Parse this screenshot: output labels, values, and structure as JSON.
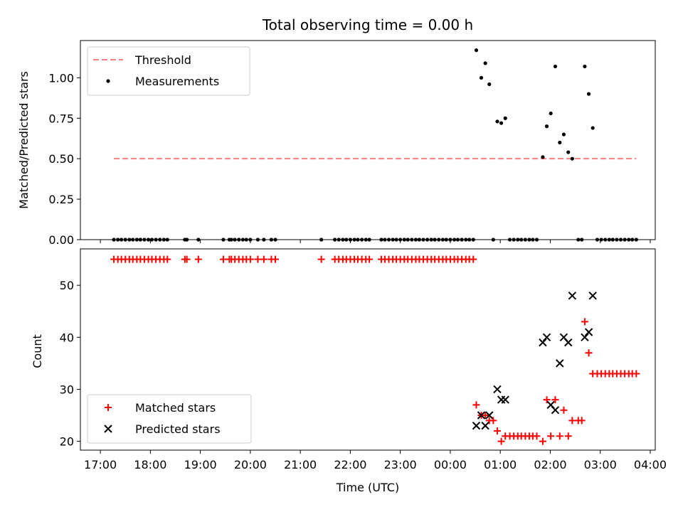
{
  "chart_data": [
    {
      "type": "scatter",
      "title": "Total observing time = 0.00 h",
      "xlabel": "",
      "ylabel": "Matched/Predicted stars",
      "xlim_hours": [
        16.6,
        28.1
      ],
      "ylim": [
        0.0,
        1.23
      ],
      "yticks": [
        0.0,
        0.25,
        0.5,
        0.75,
        1.0
      ],
      "ytick_labels": [
        "0.00",
        "0.25",
        "0.50",
        "0.75",
        "1.00"
      ],
      "legend": {
        "position": "top-left",
        "entries": [
          "Threshold",
          "Measurements"
        ]
      },
      "threshold": {
        "name": "Threshold",
        "y": 0.5,
        "x_start": 17.27,
        "x_end": 27.72,
        "color": "#ff7f7f"
      },
      "series": [
        {
          "name": "Measurements",
          "color": "#000000",
          "marker": "dot",
          "points": [
            [
              17.27,
              0
            ],
            [
              17.35,
              0
            ],
            [
              17.42,
              0
            ],
            [
              17.5,
              0
            ],
            [
              17.58,
              0
            ],
            [
              17.65,
              0
            ],
            [
              17.73,
              0
            ],
            [
              17.8,
              0
            ],
            [
              17.88,
              0
            ],
            [
              17.96,
              0
            ],
            [
              18.03,
              0
            ],
            [
              18.11,
              0
            ],
            [
              18.19,
              0
            ],
            [
              18.27,
              0
            ],
            [
              18.34,
              0
            ],
            [
              18.69,
              0
            ],
            [
              18.73,
              0
            ],
            [
              18.96,
              0
            ],
            [
              19.46,
              0
            ],
            [
              19.58,
              0
            ],
            [
              19.62,
              0
            ],
            [
              19.69,
              0
            ],
            [
              19.77,
              0
            ],
            [
              19.85,
              0
            ],
            [
              19.92,
              0
            ],
            [
              20.0,
              0
            ],
            [
              20.15,
              0
            ],
            [
              20.27,
              0
            ],
            [
              20.42,
              0
            ],
            [
              20.5,
              0
            ],
            [
              21.42,
              0
            ],
            [
              21.69,
              0
            ],
            [
              21.77,
              0
            ],
            [
              21.85,
              0
            ],
            [
              21.92,
              0
            ],
            [
              22.0,
              0
            ],
            [
              22.08,
              0
            ],
            [
              22.15,
              0
            ],
            [
              22.23,
              0
            ],
            [
              22.31,
              0
            ],
            [
              22.38,
              0
            ],
            [
              22.62,
              0
            ],
            [
              22.69,
              0
            ],
            [
              22.77,
              0
            ],
            [
              22.85,
              0
            ],
            [
              22.92,
              0
            ],
            [
              23.0,
              0
            ],
            [
              23.08,
              0
            ],
            [
              23.15,
              0
            ],
            [
              23.23,
              0
            ],
            [
              23.31,
              0
            ],
            [
              23.38,
              0
            ],
            [
              23.46,
              0
            ],
            [
              23.54,
              0
            ],
            [
              23.62,
              0
            ],
            [
              23.69,
              0
            ],
            [
              23.77,
              0
            ],
            [
              23.85,
              0
            ],
            [
              23.92,
              0
            ],
            [
              24.0,
              0
            ],
            [
              24.08,
              0
            ],
            [
              24.15,
              0
            ],
            [
              24.23,
              0
            ],
            [
              24.31,
              0
            ],
            [
              24.38,
              0
            ],
            [
              24.46,
              0
            ],
            [
              24.52,
              1.17
            ],
            [
              24.62,
              1.0
            ],
            [
              24.7,
              1.09
            ],
            [
              24.78,
              0.96
            ],
            [
              24.86,
              0
            ],
            [
              24.94,
              0.73
            ],
            [
              25.02,
              0.72
            ],
            [
              25.1,
              0.75
            ],
            [
              25.19,
              0
            ],
            [
              25.27,
              0
            ],
            [
              25.35,
              0
            ],
            [
              25.42,
              0
            ],
            [
              25.5,
              0
            ],
            [
              25.58,
              0
            ],
            [
              25.65,
              0
            ],
            [
              25.73,
              0
            ],
            [
              25.85,
              0.51
            ],
            [
              25.93,
              0.7
            ],
            [
              26.01,
              0.78
            ],
            [
              26.1,
              1.07
            ],
            [
              26.19,
              0.6
            ],
            [
              26.27,
              0.65
            ],
            [
              26.36,
              0.54
            ],
            [
              26.44,
              0.5
            ],
            [
              26.56,
              0
            ],
            [
              26.63,
              0
            ],
            [
              26.69,
              1.07
            ],
            [
              26.77,
              0.9
            ],
            [
              26.85,
              0.69
            ],
            [
              26.94,
              0
            ],
            [
              27.02,
              0
            ],
            [
              27.1,
              0
            ],
            [
              27.18,
              0
            ],
            [
              27.25,
              0
            ],
            [
              27.33,
              0
            ],
            [
              27.41,
              0
            ],
            [
              27.49,
              0
            ],
            [
              27.57,
              0
            ],
            [
              27.64,
              0
            ],
            [
              27.72,
              0
            ]
          ]
        }
      ]
    },
    {
      "type": "scatter",
      "title": "",
      "xlabel": "Time (UTC)",
      "ylabel": "Count",
      "xlim_hours": [
        16.6,
        28.1
      ],
      "ylim": [
        18.3,
        57.0
      ],
      "yticks": [
        20,
        30,
        40,
        50
      ],
      "ytick_labels": [
        "20",
        "30",
        "40",
        "50"
      ],
      "xticks_hours": [
        17,
        18,
        19,
        20,
        21,
        22,
        23,
        24,
        25,
        26,
        27,
        28
      ],
      "xtick_labels": [
        "17:00",
        "18:00",
        "19:00",
        "20:00",
        "21:00",
        "22:00",
        "23:00",
        "00:00",
        "01:00",
        "02:00",
        "03:00",
        "04:00"
      ],
      "legend": {
        "position": "bottom-left",
        "entries": [
          "Matched stars",
          "Predicted stars"
        ]
      },
      "series": [
        {
          "name": "Matched stars",
          "color": "#ff0000",
          "marker": "plus",
          "points": [
            [
              17.27,
              55
            ],
            [
              17.35,
              55
            ],
            [
              17.42,
              55
            ],
            [
              17.5,
              55
            ],
            [
              17.58,
              55
            ],
            [
              17.65,
              55
            ],
            [
              17.73,
              55
            ],
            [
              17.8,
              55
            ],
            [
              17.88,
              55
            ],
            [
              17.96,
              55
            ],
            [
              18.03,
              55
            ],
            [
              18.11,
              55
            ],
            [
              18.19,
              55
            ],
            [
              18.27,
              55
            ],
            [
              18.34,
              55
            ],
            [
              18.69,
              55
            ],
            [
              18.73,
              55
            ],
            [
              18.96,
              55
            ],
            [
              19.46,
              55
            ],
            [
              19.58,
              55
            ],
            [
              19.62,
              55
            ],
            [
              19.69,
              55
            ],
            [
              19.77,
              55
            ],
            [
              19.85,
              55
            ],
            [
              19.92,
              55
            ],
            [
              20.0,
              55
            ],
            [
              20.15,
              55
            ],
            [
              20.27,
              55
            ],
            [
              20.42,
              55
            ],
            [
              20.5,
              55
            ],
            [
              21.42,
              55
            ],
            [
              21.69,
              55
            ],
            [
              21.77,
              55
            ],
            [
              21.85,
              55
            ],
            [
              21.92,
              55
            ],
            [
              22.0,
              55
            ],
            [
              22.08,
              55
            ],
            [
              22.15,
              55
            ],
            [
              22.23,
              55
            ],
            [
              22.31,
              55
            ],
            [
              22.38,
              55
            ],
            [
              22.62,
              55
            ],
            [
              22.69,
              55
            ],
            [
              22.77,
              55
            ],
            [
              22.85,
              55
            ],
            [
              22.92,
              55
            ],
            [
              23.0,
              55
            ],
            [
              23.08,
              55
            ],
            [
              23.15,
              55
            ],
            [
              23.23,
              55
            ],
            [
              23.31,
              55
            ],
            [
              23.38,
              55
            ],
            [
              23.46,
              55
            ],
            [
              23.54,
              55
            ],
            [
              23.62,
              55
            ],
            [
              23.69,
              55
            ],
            [
              23.77,
              55
            ],
            [
              23.85,
              55
            ],
            [
              23.92,
              55
            ],
            [
              24.0,
              55
            ],
            [
              24.08,
              55
            ],
            [
              24.15,
              55
            ],
            [
              24.23,
              55
            ],
            [
              24.31,
              55
            ],
            [
              24.38,
              55
            ],
            [
              24.46,
              55
            ],
            [
              24.52,
              27
            ],
            [
              24.62,
              25
            ],
            [
              24.7,
              25
            ],
            [
              24.78,
              24
            ],
            [
              24.86,
              24
            ],
            [
              24.94,
              22
            ],
            [
              25.02,
              20
            ],
            [
              25.1,
              21
            ],
            [
              25.19,
              21
            ],
            [
              25.27,
              21
            ],
            [
              25.35,
              21
            ],
            [
              25.42,
              21
            ],
            [
              25.5,
              21
            ],
            [
              25.58,
              21
            ],
            [
              25.65,
              21
            ],
            [
              25.73,
              21
            ],
            [
              25.85,
              20
            ],
            [
              25.93,
              28
            ],
            [
              26.01,
              21
            ],
            [
              26.1,
              28
            ],
            [
              26.19,
              21
            ],
            [
              26.27,
              26
            ],
            [
              26.36,
              21
            ],
            [
              26.44,
              24
            ],
            [
              26.56,
              24
            ],
            [
              26.63,
              24
            ],
            [
              26.69,
              43
            ],
            [
              26.77,
              37
            ],
            [
              26.85,
              33
            ],
            [
              26.94,
              33
            ],
            [
              27.02,
              33
            ],
            [
              27.1,
              33
            ],
            [
              27.18,
              33
            ],
            [
              27.25,
              33
            ],
            [
              27.33,
              33
            ],
            [
              27.41,
              33
            ],
            [
              27.49,
              33
            ],
            [
              27.57,
              33
            ],
            [
              27.64,
              33
            ],
            [
              27.72,
              33
            ]
          ]
        },
        {
          "name": "Predicted stars",
          "color": "#000000",
          "marker": "x",
          "points": [
            [
              24.52,
              23
            ],
            [
              24.62,
              25
            ],
            [
              24.7,
              23
            ],
            [
              24.78,
              25
            ],
            [
              24.94,
              30
            ],
            [
              25.02,
              28
            ],
            [
              25.1,
              28
            ],
            [
              25.85,
              39
            ],
            [
              25.93,
              40
            ],
            [
              26.01,
              27
            ],
            [
              26.1,
              26
            ],
            [
              26.19,
              35
            ],
            [
              26.27,
              40
            ],
            [
              26.36,
              39
            ],
            [
              26.44,
              48
            ],
            [
              26.69,
              40
            ],
            [
              26.77,
              41
            ],
            [
              26.85,
              48
            ]
          ]
        }
      ]
    }
  ]
}
